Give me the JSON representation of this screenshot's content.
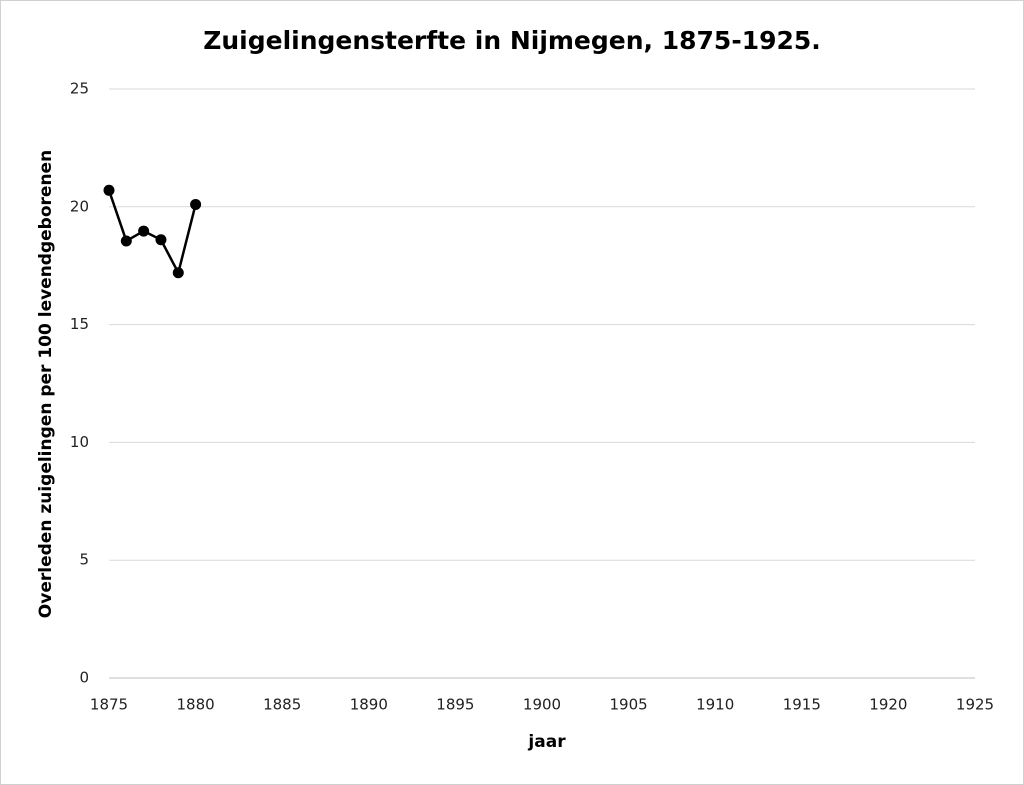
{
  "chart_data": {
    "type": "line",
    "title": "Zuigelingensterfte in Nijmegen, 1875-1925.",
    "x_label": "jaar",
    "y_label": "Overleden zuigelingen per 100 levendgeborenen",
    "x": [
      1875,
      1876,
      1877,
      1878,
      1879,
      1880
    ],
    "series": [
      {
        "name": "Zuigelingensterfte",
        "color": "#000000",
        "values": [
          20.7,
          18.55,
          18.97,
          18.6,
          17.2,
          20.1
        ]
      }
    ],
    "xlim": [
      1875,
      1925
    ],
    "xticks": [
      1875,
      1880,
      1885,
      1890,
      1895,
      1900,
      1905,
      1910,
      1915,
      1920,
      1925
    ],
    "ylim": [
      0,
      25
    ],
    "yticks": [
      0,
      5,
      10,
      15,
      20,
      25
    ],
    "grid": true
  }
}
